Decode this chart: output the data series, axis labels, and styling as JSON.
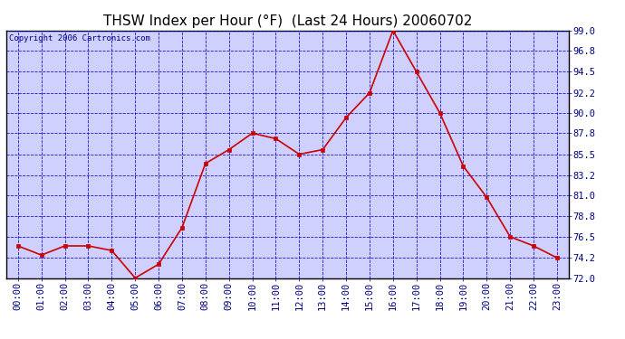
{
  "title": "THSW Index per Hour (°F)  (Last 24 Hours) 20060702",
  "copyright": "Copyright 2006 Cartronics.com",
  "hours": [
    0,
    1,
    2,
    3,
    4,
    5,
    6,
    7,
    8,
    9,
    10,
    11,
    12,
    13,
    14,
    15,
    16,
    17,
    18,
    19,
    20,
    21,
    22,
    23
  ],
  "values": [
    75.5,
    74.5,
    75.5,
    75.5,
    75.0,
    72.0,
    73.5,
    77.5,
    84.5,
    86.0,
    87.8,
    87.2,
    85.5,
    86.0,
    89.5,
    92.2,
    99.0,
    94.5,
    90.0,
    84.2,
    80.8,
    76.5,
    75.5,
    74.2
  ],
  "ylim": [
    72.0,
    99.0
  ],
  "yticks": [
    72.0,
    74.2,
    76.5,
    78.8,
    81.0,
    83.2,
    85.5,
    87.8,
    90.0,
    92.2,
    94.5,
    96.8,
    99.0
  ],
  "ytick_labels": [
    "72.0",
    "74.2",
    "76.5",
    "78.8",
    "81.0",
    "83.2",
    "85.5",
    "87.8",
    "90.0",
    "92.2",
    "94.5",
    "96.8",
    "99.0"
  ],
  "fig_bg_color": "#ffffff",
  "plot_bg_color": "#d0d0ff",
  "line_color": "#cc0000",
  "marker_color": "#cc0000",
  "grid_color": "#0000cc",
  "title_color": "#000000",
  "border_color": "#000000",
  "copyright_color": "#000080",
  "tick_color": "#000080",
  "title_fontsize": 11,
  "tick_fontsize": 7.5,
  "copyright_fontsize": 6.5
}
